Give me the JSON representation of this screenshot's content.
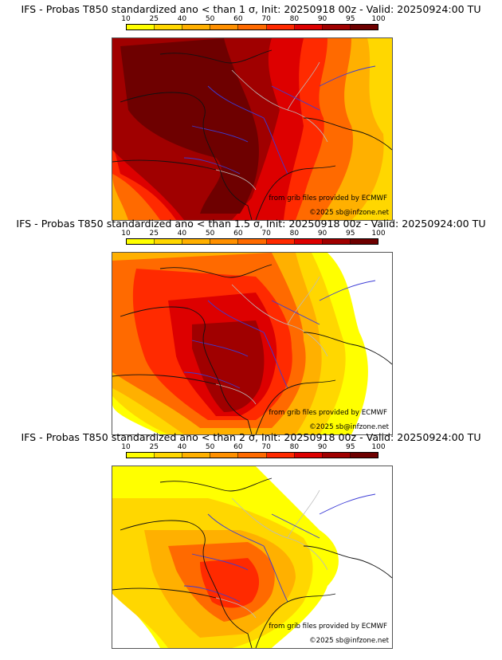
{
  "legend": {
    "ticks": [
      "10",
      "25",
      "40",
      "50",
      "60",
      "70",
      "80",
      "90",
      "95",
      "100"
    ],
    "colors": [
      "#ffff00",
      "#ffd700",
      "#ffb000",
      "#ff9000",
      "#ff6a00",
      "#ff2a00",
      "#dd0000",
      "#a00000",
      "#6e0000"
    ]
  },
  "panels": [
    {
      "title": "IFS - Probas T850  standardized ano < than 1 σ, Init: 20250918 00z - Valid: 20250924:00 TU",
      "threshold": "1",
      "credit_source": "from grib files provided by ECMWF",
      "credit_copyright": "©2025 sb@infzone.net"
    },
    {
      "title": "IFS - Probas T850  standardized ano < than 1.5 σ, Init: 20250918 00z - Valid: 20250924:00 TU",
      "threshold": "1.5",
      "credit_source": "from grib files provided by ECMWF",
      "credit_copyright": "©2025 sb@infzone.net"
    },
    {
      "title": "IFS - Probas T850  standardized ano < than 2 σ, Init: 20250918 00z - Valid: 20250924:00 TU",
      "threshold": "2",
      "credit_source": "from grib files provided by ECMWF",
      "credit_copyright": "©2025 sb@infzone.net"
    }
  ]
}
